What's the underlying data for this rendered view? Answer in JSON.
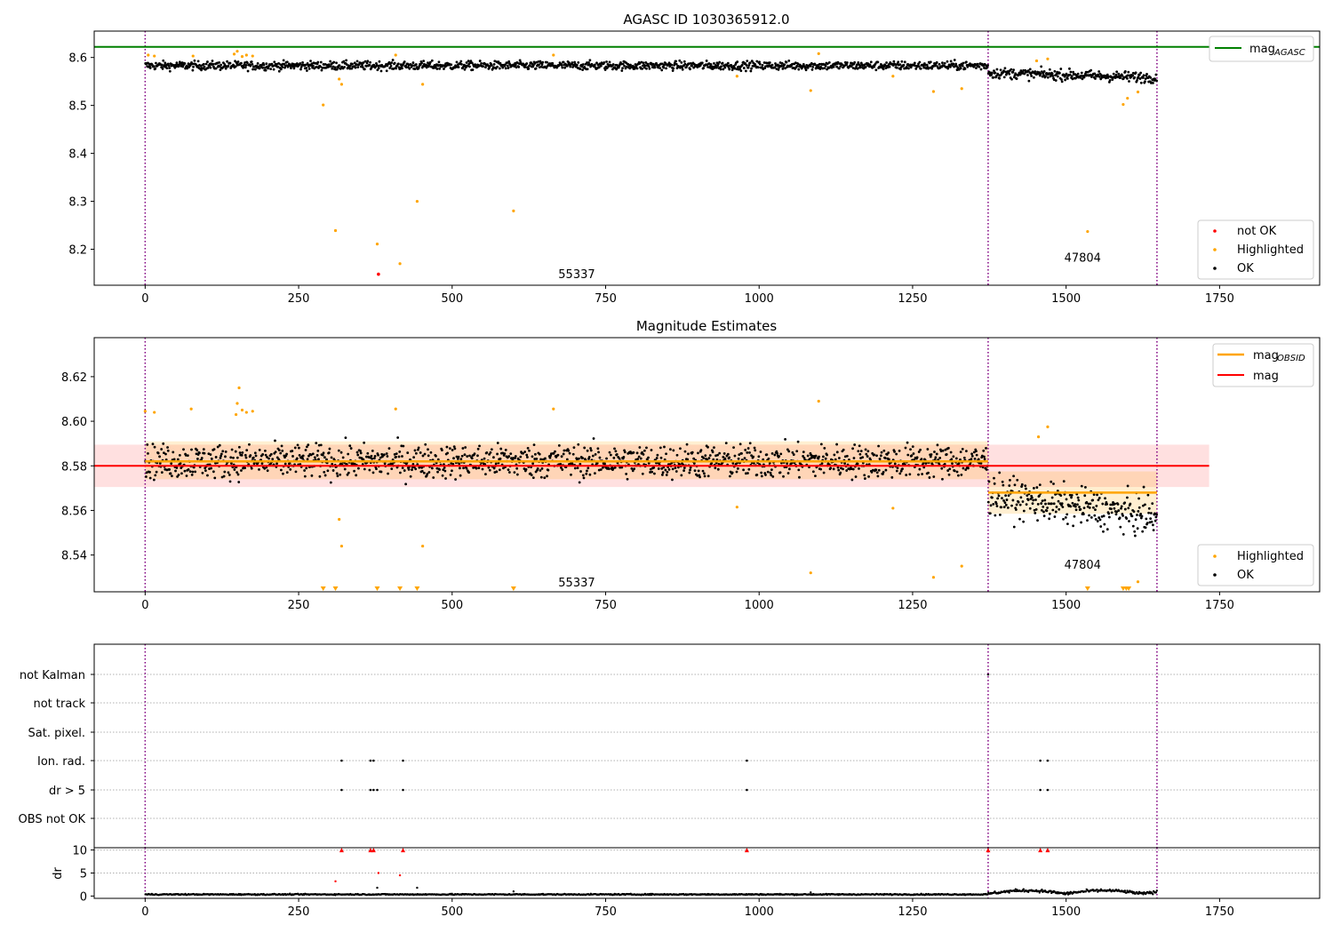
{
  "chart_data": [
    {
      "type": "scatter",
      "title": "AGASC ID 1030365912.0",
      "xlim": [
        -83,
        1913
      ],
      "ylim": [
        8.125,
        8.655
      ],
      "xticks": [
        "0",
        "250",
        "500",
        "750",
        "1000",
        "1250",
        "1500",
        "1750"
      ],
      "yticks": [
        "8.2",
        "8.3",
        "8.4",
        "8.5",
        "8.6"
      ],
      "agasc_mag": 8.622,
      "obs_boundaries": [
        0,
        1373,
        1648
      ],
      "obs_labels": [
        {
          "text": "55337",
          "x": 686,
          "y": 8.145
        },
        {
          "text": "47804",
          "x": 1510,
          "y": 8.18
        }
      ],
      "legend": {
        "position": "top-right",
        "entries": [
          {
            "label": "mag",
            "sub": "AGASC",
            "color": "#008000"
          }
        ]
      },
      "legend2": {
        "position": "bottom-right",
        "entries": [
          {
            "label": "not OK",
            "color": "#ff0000"
          },
          {
            "label": "Highlighted",
            "color": "#ffa500"
          },
          {
            "label": "OK",
            "color": "#000000"
          }
        ]
      },
      "ok_segments": [
        {
          "x_start": 0,
          "x_end": 1373,
          "level": 8.583,
          "spread": 0.009
        },
        {
          "x_start": 1373,
          "x_end": 1648,
          "level": 8.568,
          "spread": 0.011
        }
      ],
      "highlighted": [
        [
          5,
          8.605
        ],
        [
          15,
          8.603
        ],
        [
          78,
          8.603
        ],
        [
          145,
          8.607
        ],
        [
          150,
          8.613
        ],
        [
          158,
          8.602
        ],
        [
          165,
          8.605
        ],
        [
          175,
          8.603
        ],
        [
          290,
          8.501
        ],
        [
          310,
          8.239
        ],
        [
          316,
          8.555
        ],
        [
          320,
          8.544
        ],
        [
          378,
          8.211
        ],
        [
          408,
          8.605
        ],
        [
          415,
          8.17
        ],
        [
          443,
          8.3
        ],
        [
          452,
          8.544
        ],
        [
          600,
          8.28
        ],
        [
          665,
          8.605
        ],
        [
          964,
          8.561
        ],
        [
          1084,
          8.531
        ],
        [
          1097,
          8.608
        ],
        [
          1218,
          8.561
        ],
        [
          1284,
          8.529
        ],
        [
          1330,
          8.535
        ],
        [
          1452,
          8.593
        ],
        [
          1470,
          8.597
        ],
        [
          1535,
          8.237
        ],
        [
          1593,
          8.502
        ],
        [
          1600,
          8.515
        ],
        [
          1617,
          8.528
        ]
      ],
      "not_ok": [
        [
          380,
          8.148
        ]
      ]
    },
    {
      "type": "scatter",
      "title": "Magnitude Estimates",
      "xlim": [
        -83,
        1913
      ],
      "ylim": [
        8.5235,
        8.6375
      ],
      "xticks": [
        "0",
        "250",
        "500",
        "750",
        "1000",
        "1250",
        "1500",
        "1750"
      ],
      "yticks": [
        "8.54",
        "8.56",
        "8.58",
        "8.60",
        "8.62"
      ],
      "obs_boundaries": [
        0,
        1373,
        1648
      ],
      "obs_labels": [
        {
          "text": "55337",
          "x": 686,
          "y": 8.527
        },
        {
          "text": "47804",
          "x": 1510,
          "y": 8.535
        }
      ],
      "mag": 8.58,
      "mag_band": [
        8.5705,
        8.5895
      ],
      "mag_span": [
        -83,
        1733
      ],
      "obsid_means": [
        {
          "x_start": 0,
          "x_end": 1373,
          "mean": 8.582,
          "band": [
            8.574,
            8.591
          ]
        },
        {
          "x_start": 1373,
          "x_end": 1648,
          "mean": 8.568,
          "band": [
            8.5585,
            8.5775
          ]
        }
      ],
      "legend": {
        "position": "top-right",
        "entries": [
          {
            "label": "mag",
            "sub": "OBSID",
            "color": "#ffa500"
          },
          {
            "label": "mag",
            "sub": "",
            "color": "#ff0000"
          }
        ]
      },
      "legend2": {
        "position": "bottom-right",
        "entries": [
          {
            "label": "Highlighted",
            "color": "#ffa500"
          },
          {
            "label": "OK",
            "color": "#000000"
          }
        ]
      },
      "ok_segments": [
        {
          "x_start": 0,
          "x_end": 1373,
          "level": 8.582,
          "spread": 0.0075
        },
        {
          "x_start": 1373,
          "x_end": 1648,
          "level": 8.567,
          "spread": 0.0085
        }
      ],
      "highlighted": [
        [
          0,
          8.6045
        ],
        [
          15,
          8.604
        ],
        [
          75,
          8.6055
        ],
        [
          148,
          8.603
        ],
        [
          150,
          8.608
        ],
        [
          153,
          8.615
        ],
        [
          158,
          8.605
        ],
        [
          165,
          8.604
        ],
        [
          175,
          8.6045
        ],
        [
          316,
          8.556
        ],
        [
          320,
          8.544
        ],
        [
          408,
          8.6055
        ],
        [
          452,
          8.544
        ],
        [
          665,
          8.6055
        ],
        [
          964,
          8.5615
        ],
        [
          1084,
          8.532
        ],
        [
          1097,
          8.609
        ],
        [
          1218,
          8.561
        ],
        [
          1284,
          8.53
        ],
        [
          1330,
          8.535
        ],
        [
          1455,
          8.593
        ],
        [
          1470,
          8.5975
        ],
        [
          1617,
          8.528
        ]
      ],
      "below_range": [
        290,
        310,
        378,
        415,
        443,
        600,
        1535,
        1593,
        1598,
        1602
      ]
    },
    {
      "type": "scatter",
      "xlim": [
        -83,
        1913
      ],
      "flag_labels": [
        "not Kalman",
        "not track",
        "Sat. pixel.",
        "Ion. rad.",
        "dr > 5",
        "OBS not OK"
      ],
      "obs_boundaries": [
        0,
        1373,
        1648
      ],
      "flags": {
        "not Kalman": [
          1373
        ],
        "not track": [],
        "Sat. pixel.": [],
        "Ion. rad.": [
          320,
          367,
          372,
          420,
          980,
          1458,
          1470
        ],
        "dr > 5": [
          320,
          367,
          372,
          378,
          420,
          980,
          1458,
          1470
        ],
        "OBS not OK": []
      }
    },
    {
      "type": "scatter",
      "ylabel": "dr",
      "xlim": [
        -83,
        1913
      ],
      "ylim": [
        -0.5,
        10.5
      ],
      "xticks": [
        "0",
        "250",
        "500",
        "750",
        "1000",
        "1250",
        "1500",
        "1750"
      ],
      "yticks": [
        "0",
        "5",
        "10"
      ],
      "obs_boundaries": [
        0,
        1373,
        1648
      ],
      "dr_segments": [
        {
          "x_start": 0,
          "x_end": 1373,
          "level": 0.35,
          "spread": 0.12
        },
        {
          "x_start": 1373,
          "x_end": 1648,
          "level": 0.8,
          "spread": 0.3
        }
      ],
      "dr_outliers": [
        [
          310,
          3.2
        ],
        [
          378,
          1.8
        ],
        [
          380,
          5.0
        ],
        [
          415,
          4.5
        ],
        [
          443,
          1.8
        ],
        [
          600,
          1.0
        ],
        [
          1084,
          0.8
        ]
      ],
      "dr_clipped": [
        320,
        367,
        372,
        420,
        980,
        1373,
        1458,
        1470
      ]
    }
  ]
}
